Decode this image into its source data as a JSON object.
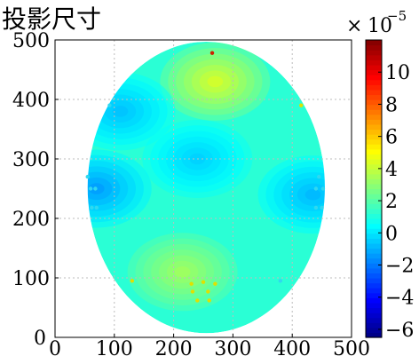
{
  "title": "投影尺寸",
  "colorbar_multiplier": {
    "times": "×",
    "base": "10",
    "exponent": "−5"
  },
  "chart_data": {
    "type": "heatmap",
    "title": "投影尺寸",
    "xlabel": "",
    "ylabel": "",
    "xlim": [
      0,
      500
    ],
    "ylim": [
      0,
      500
    ],
    "x_ticks": [
      0,
      100,
      200,
      300,
      400,
      500
    ],
    "y_ticks": [
      0,
      100,
      200,
      300,
      400,
      500
    ],
    "x_tick_labels": [
      "0",
      "100",
      "200",
      "300",
      "400",
      "500"
    ],
    "y_tick_labels": [
      "0",
      "100",
      "200",
      "300",
      "400",
      "500"
    ],
    "grid": true,
    "colorbar": {
      "range": [
        -6.5,
        12
      ],
      "ticks": [
        -6,
        -4,
        -2,
        0,
        2,
        4,
        6,
        8,
        10
      ],
      "tick_labels": [
        "−6",
        "−4",
        "−2",
        "0",
        "2",
        "4",
        "6",
        "8",
        "10"
      ],
      "scale": "×10^-5",
      "colormap": "jet"
    },
    "region": {
      "shape": "ellipse",
      "center": [
        255,
        252
      ],
      "radius_x": 200,
      "radius_y": 245
    },
    "field_features": [
      {
        "label": "top-high",
        "x": 270,
        "y": 430,
        "value": 4.5
      },
      {
        "label": "bottom-left-high",
        "x": 215,
        "y": 110,
        "value": 3.5
      },
      {
        "label": "center-low",
        "x": 240,
        "y": 300,
        "value": -0.5
      },
      {
        "label": "left-edge-low",
        "x": 70,
        "y": 250,
        "value": -1.5
      },
      {
        "label": "right-edge-low",
        "x": 435,
        "y": 240,
        "value": -1.0
      },
      {
        "label": "upper-left-low",
        "x": 110,
        "y": 380,
        "value": -0.8
      }
    ],
    "background_value": 1.2,
    "markers": [
      {
        "x": 265,
        "y": 478,
        "color": "#cc2200"
      },
      {
        "x": 92,
        "y": 390,
        "color": "#30d8f0"
      },
      {
        "x": 415,
        "y": 390,
        "color": "#e0e000"
      },
      {
        "x": 55,
        "y": 270,
        "color": "#30d8f0"
      },
      {
        "x": 60,
        "y": 250,
        "color": "#30d8f0"
      },
      {
        "x": 68,
        "y": 250,
        "color": "#30d8f0"
      },
      {
        "x": 62,
        "y": 218,
        "color": "#30d8f0"
      },
      {
        "x": 70,
        "y": 218,
        "color": "#30d8f0"
      },
      {
        "x": 445,
        "y": 270,
        "color": "#30d8f0"
      },
      {
        "x": 440,
        "y": 250,
        "color": "#30d8f0"
      },
      {
        "x": 452,
        "y": 250,
        "color": "#30d8f0"
      },
      {
        "x": 440,
        "y": 218,
        "color": "#30d8f0"
      },
      {
        "x": 450,
        "y": 218,
        "color": "#30d8f0"
      },
      {
        "x": 130,
        "y": 95,
        "color": "#e0e000"
      },
      {
        "x": 230,
        "y": 90,
        "color": "#e0e000"
      },
      {
        "x": 250,
        "y": 93,
        "color": "#e0e000"
      },
      {
        "x": 270,
        "y": 90,
        "color": "#e0e000"
      },
      {
        "x": 232,
        "y": 77,
        "color": "#e0e000"
      },
      {
        "x": 258,
        "y": 77,
        "color": "#e0e000"
      },
      {
        "x": 240,
        "y": 62,
        "color": "#e0e000"
      },
      {
        "x": 260,
        "y": 62,
        "color": "#e0e000"
      },
      {
        "x": 380,
        "y": 95,
        "color": "#30d8f0"
      }
    ]
  }
}
